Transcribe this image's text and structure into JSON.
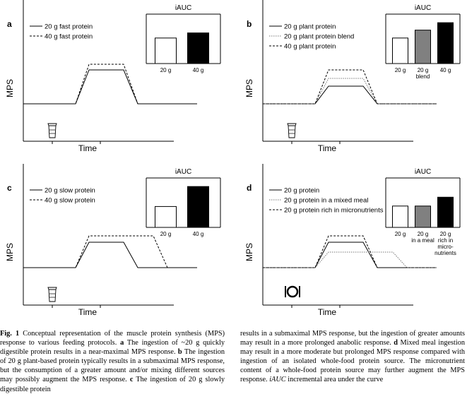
{
  "panels": [
    {
      "letter": "a",
      "iauc_title": "iAUC",
      "x_label": "Time",
      "y_label": "MPS",
      "legend": [
        {
          "label": "20 g fast protein",
          "style": "solid"
        },
        {
          "label": "40 g fast protein",
          "style": "dashed"
        }
      ],
      "bars": [
        {
          "label": "20 g",
          "fill": "#ffffff"
        },
        {
          "label": "40 g",
          "fill": "#000000"
        }
      ],
      "icon": "shaker-icon"
    },
    {
      "letter": "b",
      "iauc_title": "iAUC",
      "x_label": "Time",
      "y_label": "MPS",
      "legend": [
        {
          "label": "20 g plant protein",
          "style": "solid"
        },
        {
          "label": "20 g plant protein blend",
          "style": "dotted"
        },
        {
          "label": "40 g plant protein",
          "style": "dashed"
        }
      ],
      "bars": [
        {
          "label": "20 g",
          "fill": "#ffffff"
        },
        {
          "label": "20 g blend",
          "fill": "#808080"
        },
        {
          "label": "40 g",
          "fill": "#000000"
        }
      ],
      "icon": "shaker-icon"
    },
    {
      "letter": "c",
      "iauc_title": "iAUC",
      "x_label": "Time",
      "y_label": "MPS",
      "legend": [
        {
          "label": "20 g slow protein",
          "style": "solid"
        },
        {
          "label": "40 g slow protein",
          "style": "dashed"
        }
      ],
      "bars": [
        {
          "label": "20 g",
          "fill": "#ffffff"
        },
        {
          "label": "40 g",
          "fill": "#000000"
        }
      ],
      "icon": "shaker-icon"
    },
    {
      "letter": "d",
      "iauc_title": "iAUC",
      "x_label": "Time",
      "y_label": "MPS",
      "legend": [
        {
          "label": "20 g protein",
          "style": "solid"
        },
        {
          "label": "20 g protein in a mixed meal",
          "style": "dotted"
        },
        {
          "label": "20 g protein rich in micronutrients",
          "style": "dashed"
        }
      ],
      "bars": [
        {
          "label": "20 g",
          "fill": "#ffffff"
        },
        {
          "label": "20 g in a meal",
          "fill": "#808080"
        },
        {
          "label": "20 g rich in micro-nutrients",
          "fill": "#000000"
        }
      ],
      "icon": "meal-icon"
    }
  ],
  "caption": {
    "fig_label": "Fig. 1",
    "intro": "Conceptual representation of the muscle protein synthesis (MPS) response to various feeding protocols.",
    "a_letter": "a",
    "a_text": "The ingestion of ~20 g quickly digestible protein results in a near-maximal MPS response.",
    "b_letter": "b",
    "b_text": "The ingestion of 20 g plant-based protein typically results in a submaximal MPS response, but the consumption of a greater amount and/or mixing different sources may possibly augment the MPS response.",
    "c_letter": "c",
    "c_text": "The ingestion of 20 g slowly digestible protein results in a submaximal MPS response, but the ingestion of greater amounts may result in a more prolonged anabolic response.",
    "d_letter": "d",
    "d_text": "Mixed meal ingestion may result in a more moderate but prolonged MPS response compared with ingestion of an isolated whole-food protein source. The micronutrient content of a whole-food protein source may further augment the MPS response.",
    "iauc_term": "iAUC",
    "iauc_def": "incremental area under the curve"
  }
}
